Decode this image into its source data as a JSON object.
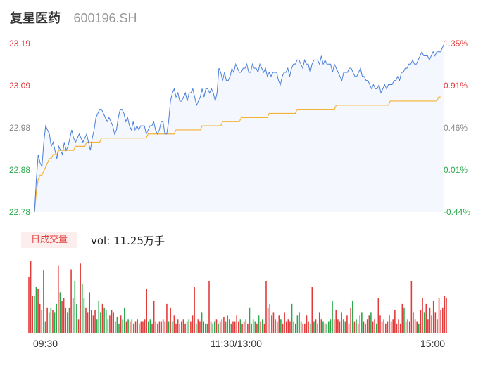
{
  "header": {
    "name": "复星医药",
    "code": "600196.SH"
  },
  "volume_panel": {
    "tab_label": "日成交量",
    "vol_prefix": "vol:",
    "vol_value": "11.25万手"
  },
  "colors": {
    "price_line": "#4a7fd8",
    "price_fill": "#f4f7fd",
    "avg_line": "#f5b335",
    "up": "#e23b3b",
    "down": "#2aa84a",
    "neutral_tick": "#888888"
  },
  "chart_data": {
    "type": "line",
    "title": "",
    "xlabel": "",
    "ylabel": "",
    "ylim": [
      22.78,
      23.19
    ],
    "price_ticks": [
      "23.19",
      "23.09",
      "22.98",
      "22.88",
      "22.78"
    ],
    "pct_ticks": [
      "1.35%",
      "0.91%",
      "0.46%",
      "0.01%",
      "-0.44%"
    ],
    "time_labels": [
      "09:30",
      "11:30/13:00",
      "15:00"
    ],
    "price": [
      22.78,
      22.86,
      22.92,
      22.9,
      22.89,
      22.95,
      22.99,
      22.98,
      22.97,
      22.94,
      22.95,
      22.93,
      22.91,
      22.94,
      22.93,
      22.92,
      22.95,
      22.93,
      22.94,
      22.96,
      22.98,
      22.96,
      22.95,
      22.96,
      22.97,
      22.96,
      22.95,
      22.96,
      22.97,
      22.95,
      22.93,
      22.96,
      22.98,
      23.01,
      23.02,
      23.03,
      23.03,
      23.02,
      23.01,
      23.0,
      23.01,
      23.0,
      22.99,
      22.97,
      22.98,
      23.01,
      23.03,
      23.03,
      23.02,
      23.0,
      23.01,
      22.99,
      22.98,
      23.0,
      22.98,
      22.99,
      22.98,
      22.99,
      22.99,
      22.99,
      22.97,
      22.98,
      22.99,
      22.99,
      23.0,
      22.98,
      22.97,
      22.98,
      23.0,
      23.0,
      22.97,
      22.97,
      23.0,
      23.05,
      23.07,
      23.08,
      23.06,
      23.07,
      23.05,
      23.05,
      23.06,
      23.07,
      23.05,
      23.07,
      23.07,
      23.08,
      23.06,
      23.04,
      23.05,
      23.06,
      23.08,
      23.06,
      23.08,
      23.08,
      23.07,
      23.08,
      23.07,
      23.05,
      23.07,
      23.13,
      23.12,
      23.1,
      23.12,
      23.1,
      23.1,
      23.11,
      23.13,
      23.12,
      23.14,
      23.13,
      23.12,
      23.12,
      23.13,
      23.13,
      23.14,
      23.12,
      23.12,
      23.14,
      23.13,
      23.13,
      23.12,
      23.14,
      23.13,
      23.12,
      23.13,
      23.11,
      23.12,
      23.11,
      23.12,
      23.12,
      23.12,
      23.1,
      23.09,
      23.11,
      23.12,
      23.12,
      23.13,
      23.11,
      23.13,
      23.14,
      23.14,
      23.15,
      23.15,
      23.14,
      23.13,
      23.15,
      23.14,
      23.14,
      23.12,
      23.14,
      23.15,
      23.15,
      23.15,
      23.14,
      23.16,
      23.14,
      23.15,
      23.14,
      23.14,
      23.14,
      23.12,
      23.14,
      23.13,
      23.12,
      23.11,
      23.1,
      23.12,
      23.12,
      23.12,
      23.13,
      23.13,
      23.12,
      23.11,
      23.11,
      23.12,
      23.13,
      23.11,
      23.11,
      23.1,
      23.1,
      23.09,
      23.08,
      23.09,
      23.08,
      23.08,
      23.09,
      23.07,
      23.08,
      23.09,
      23.08,
      23.09,
      23.09,
      23.09,
      23.1,
      23.1,
      23.11,
      23.1,
      23.12,
      23.12,
      23.13,
      23.13,
      23.14,
      23.14,
      23.15,
      23.14,
      23.14,
      23.15,
      23.16,
      23.17,
      23.16,
      23.16,
      23.16,
      23.15,
      23.16,
      23.17,
      23.16,
      23.17,
      23.17,
      23.17,
      23.18,
      23.19
    ],
    "avg": [
      22.78,
      22.83,
      22.86,
      22.87,
      22.87,
      22.88,
      22.89,
      22.9,
      22.91,
      22.91,
      22.92,
      22.92,
      22.92,
      22.93,
      22.93,
      22.93,
      22.93,
      22.93,
      22.93,
      22.93,
      22.93,
      22.93,
      22.94,
      22.94,
      22.94,
      22.94,
      22.94,
      22.94,
      22.95,
      22.95,
      22.95,
      22.95,
      22.95,
      22.95,
      22.95,
      22.95,
      22.96,
      22.96,
      22.96,
      22.96,
      22.96,
      22.96,
      22.96,
      22.96,
      22.96,
      22.96,
      22.96,
      22.96,
      22.96,
      22.96,
      22.96,
      22.96,
      22.96,
      22.96,
      22.96,
      22.96,
      22.96,
      22.96,
      22.96,
      22.96,
      22.96,
      22.97,
      22.97,
      22.97,
      22.97,
      22.97,
      22.97,
      22.97,
      22.97,
      22.97,
      22.97,
      22.97,
      22.97,
      22.97,
      22.97,
      22.97,
      22.98,
      22.98,
      22.98,
      22.98,
      22.98,
      22.98,
      22.98,
      22.98,
      22.98,
      22.98,
      22.98,
      22.98,
      22.98,
      22.98,
      22.99,
      22.99,
      22.99,
      22.99,
      22.99,
      22.99,
      22.99,
      22.99,
      22.99,
      22.99,
      22.99,
      23.0,
      23.0,
      23.0,
      23.0,
      23.0,
      23.0,
      23.0,
      23.0,
      23.0,
      23.0,
      23.01,
      23.01,
      23.01,
      23.01,
      23.01,
      23.01,
      23.01,
      23.01,
      23.01,
      23.01,
      23.01,
      23.01,
      23.01,
      23.01,
      23.01,
      23.02,
      23.02,
      23.02,
      23.02,
      23.02,
      23.02,
      23.02,
      23.02,
      23.02,
      23.02,
      23.02,
      23.02,
      23.02,
      23.02,
      23.02,
      23.03,
      23.03,
      23.03,
      23.03,
      23.03,
      23.03,
      23.03,
      23.03,
      23.03,
      23.03,
      23.03,
      23.03,
      23.03,
      23.03,
      23.03,
      23.03,
      23.03,
      23.03,
      23.03,
      23.03,
      23.03,
      23.04,
      23.04,
      23.04,
      23.04,
      23.04,
      23.04,
      23.04,
      23.04,
      23.04,
      23.04,
      23.04,
      23.04,
      23.04,
      23.04,
      23.04,
      23.04,
      23.04,
      23.04,
      23.04,
      23.04,
      23.04,
      23.04,
      23.04,
      23.04,
      23.04,
      23.04,
      23.04,
      23.04,
      23.04,
      23.05,
      23.05,
      23.05,
      23.05,
      23.05,
      23.05,
      23.05,
      23.05,
      23.05,
      23.05,
      23.05,
      23.05,
      23.05,
      23.05,
      23.05,
      23.05,
      23.05,
      23.05,
      23.05,
      23.05,
      23.05,
      23.05,
      23.05,
      23.05,
      23.05,
      23.05,
      23.06,
      23.06
    ],
    "volume": [
      48,
      62,
      32,
      32,
      40,
      38,
      25,
      20,
      54,
      10,
      22,
      18,
      22,
      20,
      18,
      25,
      58,
      35,
      28,
      30,
      22,
      18,
      22,
      55,
      30,
      45,
      25,
      12,
      60,
      42,
      30,
      22,
      18,
      35,
      20,
      15,
      20,
      12,
      28,
      18,
      25,
      22,
      20,
      12,
      15,
      20,
      18,
      10,
      14,
      8,
      15,
      12,
      22,
      10,
      12,
      10,
      12,
      8,
      10,
      12,
      8,
      10,
      10,
      12,
      38,
      10,
      12,
      8,
      28,
      10,
      8,
      10,
      10,
      12,
      10,
      25,
      10,
      22,
      10,
      15,
      8,
      12,
      8,
      10,
      12,
      8,
      10,
      12,
      10,
      15,
      40,
      8,
      12,
      10,
      18,
      10,
      8,
      8,
      45,
      10,
      8,
      10,
      12,
      8,
      10,
      12,
      14,
      10,
      15,
      12,
      8,
      10,
      10,
      15,
      10,
      12,
      8,
      10,
      12,
      8,
      22,
      8,
      12,
      10,
      8,
      15,
      10,
      12,
      8,
      45,
      22,
      25,
      15,
      18,
      12,
      10,
      15,
      12,
      8,
      18,
      10,
      12,
      10,
      25,
      10,
      8,
      15,
      18,
      10,
      8,
      8,
      15,
      10,
      8,
      40,
      10,
      12,
      8,
      18,
      12,
      10,
      8,
      8,
      10,
      12,
      28,
      12,
      20,
      12,
      10,
      18,
      12,
      10,
      15,
      8,
      22,
      28,
      10,
      12,
      8,
      15,
      18,
      10,
      8,
      12,
      15,
      18,
      10,
      12,
      8,
      30,
      15,
      10,
      12,
      8,
      10,
      15,
      10,
      12,
      20,
      8,
      12,
      8,
      25,
      22,
      10,
      12,
      10,
      45,
      18,
      12,
      10,
      8,
      20,
      30,
      18,
      25,
      12,
      22,
      15,
      28,
      18,
      12,
      30,
      20,
      22,
      32,
      30
    ]
  }
}
